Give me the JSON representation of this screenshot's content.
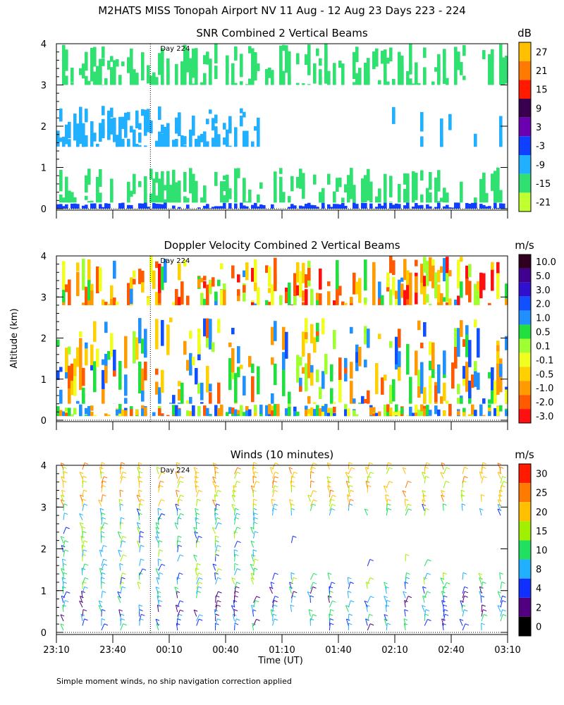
{
  "title": "M2HATS MISS Tonopah Airport NV  11 Aug - 12 Aug 23 Days 223 - 224",
  "ylabel": "Altitude (km)",
  "xlabel": "Time (UT)",
  "footnote": "Simple moment winds, no ship navigation correction applied",
  "day_marker_label": "Day 224",
  "x_ticks": [
    "23:10",
    "23:40",
    "00:10",
    "00:40",
    "01:10",
    "01:40",
    "02:10",
    "02:40",
    "03:10"
  ],
  "y_ticks": [
    "0",
    "1",
    "2",
    "3",
    "4"
  ],
  "chart_data": [
    {
      "type": "heatmap",
      "title": "SNR Combined 2 Vertical Beams",
      "units": "dB",
      "ylim": [
        0,
        4
      ],
      "colorbar": {
        "labels": [
          "27",
          "21",
          "15",
          "9",
          "3",
          "-3",
          "-9",
          "-15",
          "-21"
        ],
        "colors": [
          "#ffc000",
          "#ff7a00",
          "#ff1a00",
          "#3a0050",
          "#6a00b0",
          "#1040ff",
          "#20b0ff",
          "#30e070",
          "#c0ff30"
        ]
      },
      "layers": [
        {
          "alt_min": 0.0,
          "alt_max": 0.15,
          "value": -3
        },
        {
          "alt_min": 0.15,
          "alt_max": 1.0,
          "value": -15
        },
        {
          "alt_min": 1.5,
          "alt_max": 2.5,
          "value": -9
        },
        {
          "alt_min": 3.0,
          "alt_max": 4.0,
          "value": -15
        }
      ]
    },
    {
      "type": "heatmap",
      "title": "Doppler Velocity Combined 2 Vertical Beams",
      "units": "m/s",
      "ylim": [
        0,
        4
      ],
      "colorbar": {
        "labels": [
          "10.0",
          "5.0",
          "3.0",
          "2.0",
          "1.0",
          "0.5",
          "0.1",
          "-0.1",
          "-0.5",
          "-1.0",
          "-2.0",
          "-3.0"
        ],
        "colors": [
          "#300020",
          "#400090",
          "#3010d0",
          "#1050ff",
          "#2090ff",
          "#20e040",
          "#a0ff30",
          "#f0ff20",
          "#ffd000",
          "#ff9a00",
          "#ff5a00",
          "#ff1010"
        ]
      },
      "layers": [
        {
          "alt_min": 0.1,
          "alt_max": 0.4,
          "value": -0.1
        },
        {
          "alt_min": 0.4,
          "alt_max": 2.5,
          "value": 0.1
        },
        {
          "alt_min": 2.8,
          "alt_max": 4.0,
          "value": -1.0
        }
      ]
    },
    {
      "type": "scatter",
      "title": "Winds (10 minutes)",
      "units": "m/s",
      "ylim": [
        0,
        4
      ],
      "marker": "wind-barb",
      "colorbar": {
        "labels": [
          "30",
          "25",
          "20",
          "15",
          "10",
          "8",
          "4",
          "2",
          "0"
        ],
        "colors": [
          "#ff1a00",
          "#ff7a00",
          "#ffc000",
          "#a0f000",
          "#20e060",
          "#20b0ff",
          "#1030ff",
          "#500080",
          "#000000"
        ]
      }
    }
  ]
}
